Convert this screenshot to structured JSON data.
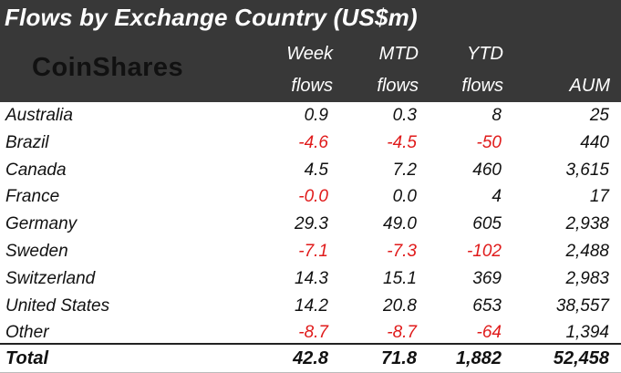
{
  "title": "Flows by Exchange Country (US$m)",
  "logo": "CoinShares",
  "headers": {
    "week": [
      "Week",
      "flows"
    ],
    "mtd": [
      "MTD",
      "flows"
    ],
    "ytd": [
      "YTD",
      "flows"
    ],
    "aum": [
      "",
      "AUM"
    ]
  },
  "colors": {
    "header_bg": "#383838",
    "negative": "#e01b1b",
    "text": "#111111"
  },
  "rows": [
    {
      "country": "Australia",
      "week": "0.9",
      "mtd": "0.3",
      "ytd": "8",
      "aum": "25"
    },
    {
      "country": "Brazil",
      "week": "-4.6",
      "mtd": "-4.5",
      "ytd": "-50",
      "aum": "440"
    },
    {
      "country": "Canada",
      "week": "4.5",
      "mtd": "7.2",
      "ytd": "460",
      "aum": "3,615"
    },
    {
      "country": "France",
      "week": "-0.0",
      "mtd": "0.0",
      "ytd": "4",
      "aum": "17"
    },
    {
      "country": "Germany",
      "week": "29.3",
      "mtd": "49.0",
      "ytd": "605",
      "aum": "2,938"
    },
    {
      "country": "Sweden",
      "week": "-7.1",
      "mtd": "-7.3",
      "ytd": "-102",
      "aum": "2,488"
    },
    {
      "country": "Switzerland",
      "week": "14.3",
      "mtd": "15.1",
      "ytd": "369",
      "aum": "2,983"
    },
    {
      "country": "United States",
      "week": "14.2",
      "mtd": "20.8",
      "ytd": "653",
      "aum": "38,557"
    },
    {
      "country": "Other",
      "week": "-8.7",
      "mtd": "-8.7",
      "ytd": "-64",
      "aum": "1,394"
    }
  ],
  "total": {
    "label": "Total",
    "week": "42.8",
    "mtd": "71.8",
    "ytd": "1,882",
    "aum": "52,458"
  }
}
